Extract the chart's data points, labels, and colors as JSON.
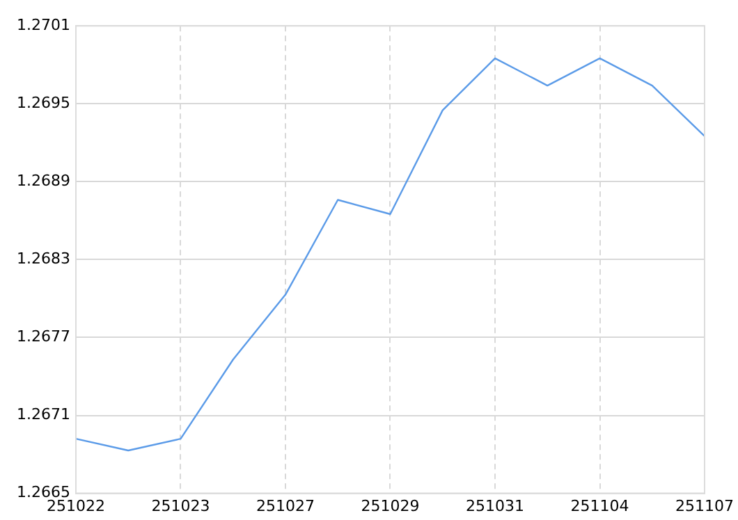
{
  "chart_data": {
    "type": "line",
    "categories": [
      "251022",
      null,
      "251023",
      null,
      "251027",
      null,
      "251029",
      null,
      "251031",
      null,
      "251104",
      null,
      "251107"
    ],
    "series": [
      {
        "color": "#5b9be8",
        "values": [
          1.26692,
          1.26683,
          1.26692,
          1.26753,
          1.26803,
          1.26876,
          1.26865,
          1.26945,
          1.26985,
          1.26964,
          1.26985,
          1.26964,
          1.26925
        ]
      }
    ],
    "ylim": [
      1.2665,
      1.2701
    ],
    "yticks": [
      1.2665,
      1.2671,
      1.2677,
      1.2683,
      1.2689,
      1.2695,
      1.2701
    ],
    "grid": true,
    "legend": false,
    "marker": "none",
    "line_style": "solid"
  }
}
